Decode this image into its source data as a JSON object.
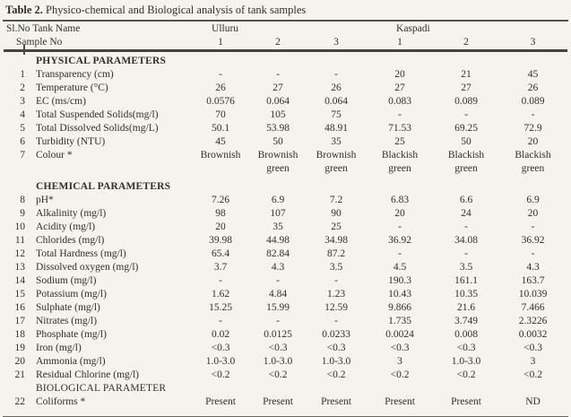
{
  "page": {
    "background_color": "#f4f3ee",
    "text_color": "#322f2a",
    "rule_color": "#55524a"
  },
  "title": {
    "label": "Table 2.",
    "text": " Physico-chemical and Biological analysis of tank samples"
  },
  "table": {
    "header": {
      "tank_name_label": "Sl.No Tank Name",
      "sample_no_label": "Sample No",
      "groups": [
        "Ulluru",
        "Kaspadi"
      ],
      "sample_numbers": [
        "1",
        "2",
        "3",
        "1",
        "2",
        "3"
      ]
    },
    "rows": [
      {
        "type": "section",
        "label": "PHYSICAL PARAMETERS",
        "bold": true
      },
      {
        "type": "data",
        "no": "1",
        "param": "Transparency (cm)",
        "values": [
          "-",
          "-",
          "-",
          "20",
          "21",
          "45"
        ]
      },
      {
        "type": "data",
        "no": "2",
        "param": "Temperature (°C)",
        "values": [
          "26",
          "27",
          "26",
          "27",
          "27",
          "26"
        ]
      },
      {
        "type": "data",
        "no": "3",
        "param": "EC (ms/cm)",
        "values": [
          "0.0576",
          "0.064",
          "0.064",
          "0.083",
          "0.089",
          "0.089"
        ]
      },
      {
        "type": "data",
        "no": "4",
        "param": "Total Suspended Solids(mg/l)",
        "values": [
          "70",
          "105",
          "75",
          "-",
          "-",
          "-"
        ]
      },
      {
        "type": "data",
        "no": "5",
        "param": "Total Dissolved Solids(mg/L)",
        "values": [
          "50.1",
          "53.98",
          "48.91",
          "71.53",
          "69.25",
          "72.9"
        ]
      },
      {
        "type": "data",
        "no": "6",
        "param": "Turbidity (NTU)",
        "values": [
          "45",
          "50",
          "35",
          "25",
          "50",
          "20"
        ]
      },
      {
        "type": "data",
        "no": "7",
        "param": "Colour *",
        "values": [
          "Brownish",
          "Brownish\ngreen",
          "Brownish\ngreen",
          "Blackish\ngreen",
          "Blackish\ngreen",
          "Blackish\ngreen"
        ]
      },
      {
        "type": "section",
        "label": "CHEMICAL PARAMETERS",
        "bold": true,
        "gap_above": true
      },
      {
        "type": "data",
        "no": "8",
        "param": "pH*",
        "values": [
          "7.26",
          "6.9",
          "7.2",
          "6.83",
          "6.6",
          "6.9"
        ]
      },
      {
        "type": "data",
        "no": "9",
        "param": "Alkalinity (mg/l)",
        "values": [
          "98",
          "107",
          "90",
          "20",
          "24",
          "20"
        ]
      },
      {
        "type": "data",
        "no": "10",
        "param": "Acidity (mg/l)",
        "values": [
          "20",
          "35",
          "25",
          "-",
          "-",
          "-"
        ]
      },
      {
        "type": "data",
        "no": "11",
        "param": "Chlorides (mg/l)",
        "values": [
          "39.98",
          "44.98",
          "34.98",
          "36.92",
          "34.08",
          "36.92"
        ]
      },
      {
        "type": "data",
        "no": "12",
        "param": "Total Hardness (mg/l)",
        "values": [
          "65.4",
          "82.84",
          "87.2",
          "-",
          "-",
          "-"
        ]
      },
      {
        "type": "data",
        "no": "13",
        "param": "Dissolved oxygen (mg/l)",
        "values": [
          "3.7",
          "4.3",
          "3.5",
          "4.5",
          "3.5",
          "4.3"
        ]
      },
      {
        "type": "data",
        "no": "14",
        "param": "Sodium (mg/l)",
        "values": [
          "-",
          "-",
          "-",
          "190.3",
          "161.1",
          "163.7"
        ]
      },
      {
        "type": "data",
        "no": "15",
        "param": "Potassium (mg/l)",
        "values": [
          "1.62",
          "4.84",
          "1.23",
          "10.43",
          "10.35",
          "10.039"
        ]
      },
      {
        "type": "data",
        "no": "16",
        "param": "Sulphate (mg/l)",
        "values": [
          "15.25",
          "15.99",
          "12.59",
          "9.866",
          "21.6",
          "7.466"
        ]
      },
      {
        "type": "data",
        "no": "17",
        "param": "Nitrates (mg/l)",
        "values": [
          "-",
          "-",
          "-",
          "1.735",
          "3.749",
          "2.3226"
        ]
      },
      {
        "type": "data",
        "no": "18",
        "param": "Phosphate (mg/l)",
        "values": [
          "0.02",
          "0.0125",
          "0.0233",
          "0.0024",
          "0.008",
          "0.0032"
        ]
      },
      {
        "type": "data",
        "no": "19",
        "param": "Iron (mg/l)",
        "values": [
          "<0.3",
          "<0.3",
          "<0.3",
          "<0.3",
          "<0.3",
          "<0.3"
        ]
      },
      {
        "type": "data",
        "no": "20",
        "param": "Ammonia (mg/l)",
        "values": [
          "1.0-3.0",
          "1.0-3.0",
          "1.0-3.0",
          "3",
          "1.0-3.0",
          "3"
        ]
      },
      {
        "type": "data",
        "no": "21",
        "param": "Residual Chlorine (mg/l)",
        "values": [
          "<0.2",
          "<0.2",
          "<0.2",
          "<0.2",
          "<0.2",
          "<0.2"
        ]
      },
      {
        "type": "section",
        "label": "BIOLOGICAL PARAMETER",
        "bold": false
      },
      {
        "type": "data",
        "no": "22",
        "param": "Coliforms *",
        "values": [
          "Present",
          "Present",
          "Present",
          "Present",
          "Present",
          "ND"
        ]
      }
    ]
  }
}
